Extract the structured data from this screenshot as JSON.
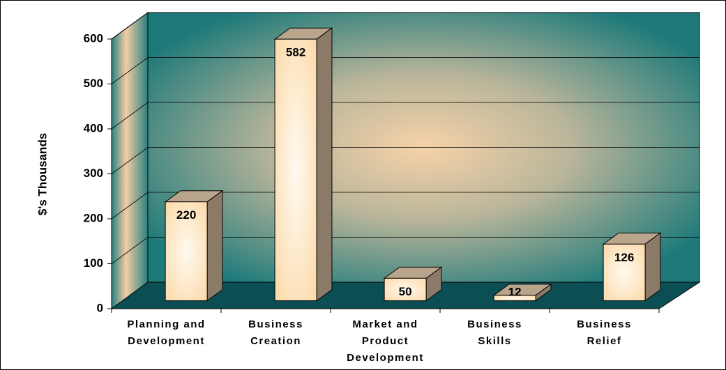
{
  "chart_data": {
    "type": "bar3d",
    "y_label": "$'s Thousands",
    "categories": [
      [
        "Planning and",
        "Development"
      ],
      [
        "Business",
        "Creation"
      ],
      [
        "Market and",
        "Product",
        "Development"
      ],
      [
        "Business",
        "Skills"
      ],
      [
        "Business",
        "Relief"
      ]
    ],
    "values": [
      220,
      582,
      50,
      12,
      126
    ],
    "color": "#fcd9a8",
    "ylim": [
      0,
      600
    ],
    "yticks": [
      0,
      100,
      200,
      300,
      400,
      500,
      600
    ],
    "grid": true
  }
}
